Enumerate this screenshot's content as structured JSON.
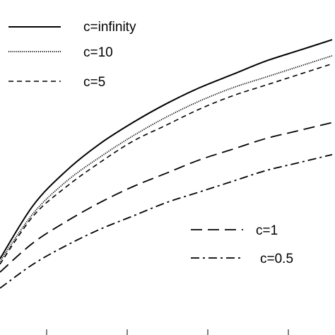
{
  "chart_data": {
    "type": "line",
    "title": "",
    "xlabel": "",
    "ylabel": "",
    "xlim": [
      0,
      1
    ],
    "ylim": [
      0,
      1
    ],
    "grid": false,
    "legend_placement": [
      "top-left",
      "bottom-right"
    ],
    "line_color": "#000000",
    "series": [
      {
        "name": "c=infinity",
        "style": "solid",
        "x": [
          0,
          0.1,
          0.2,
          0.3,
          0.4,
          0.5,
          0.6,
          0.7,
          0.8,
          0.9,
          1.0
        ],
        "y": [
          0.19,
          0.39,
          0.52,
          0.62,
          0.7,
          0.77,
          0.83,
          0.88,
          0.93,
          0.97,
          1.01
        ]
      },
      {
        "name": "c=10",
        "style": "dotted",
        "x": [
          0,
          0.1,
          0.2,
          0.3,
          0.4,
          0.5,
          0.6,
          0.7,
          0.8,
          0.9,
          1.0
        ],
        "y": [
          0.18,
          0.36,
          0.48,
          0.57,
          0.65,
          0.72,
          0.78,
          0.83,
          0.87,
          0.91,
          0.95
        ]
      },
      {
        "name": "c=5",
        "style": "dashed",
        "x": [
          0,
          0.1,
          0.2,
          0.3,
          0.4,
          0.5,
          0.6,
          0.7,
          0.8,
          0.9,
          1.0
        ],
        "y": [
          0.17,
          0.35,
          0.46,
          0.55,
          0.63,
          0.69,
          0.75,
          0.8,
          0.84,
          0.88,
          0.92
        ]
      },
      {
        "name": "c=1",
        "style": "long-dash",
        "x": [
          0,
          0.1,
          0.2,
          0.3,
          0.4,
          0.5,
          0.6,
          0.7,
          0.8,
          0.9,
          1.0
        ],
        "y": [
          0.14,
          0.25,
          0.33,
          0.4,
          0.46,
          0.51,
          0.56,
          0.6,
          0.64,
          0.67,
          0.7
        ]
      },
      {
        "name": "c=0.5",
        "style": "dash-dot",
        "x": [
          0,
          0.1,
          0.2,
          0.3,
          0.4,
          0.5,
          0.6,
          0.7,
          0.8,
          0.9,
          1.0
        ],
        "y": [
          0.08,
          0.17,
          0.24,
          0.3,
          0.35,
          0.4,
          0.44,
          0.48,
          0.52,
          0.55,
          0.58
        ]
      }
    ]
  }
}
